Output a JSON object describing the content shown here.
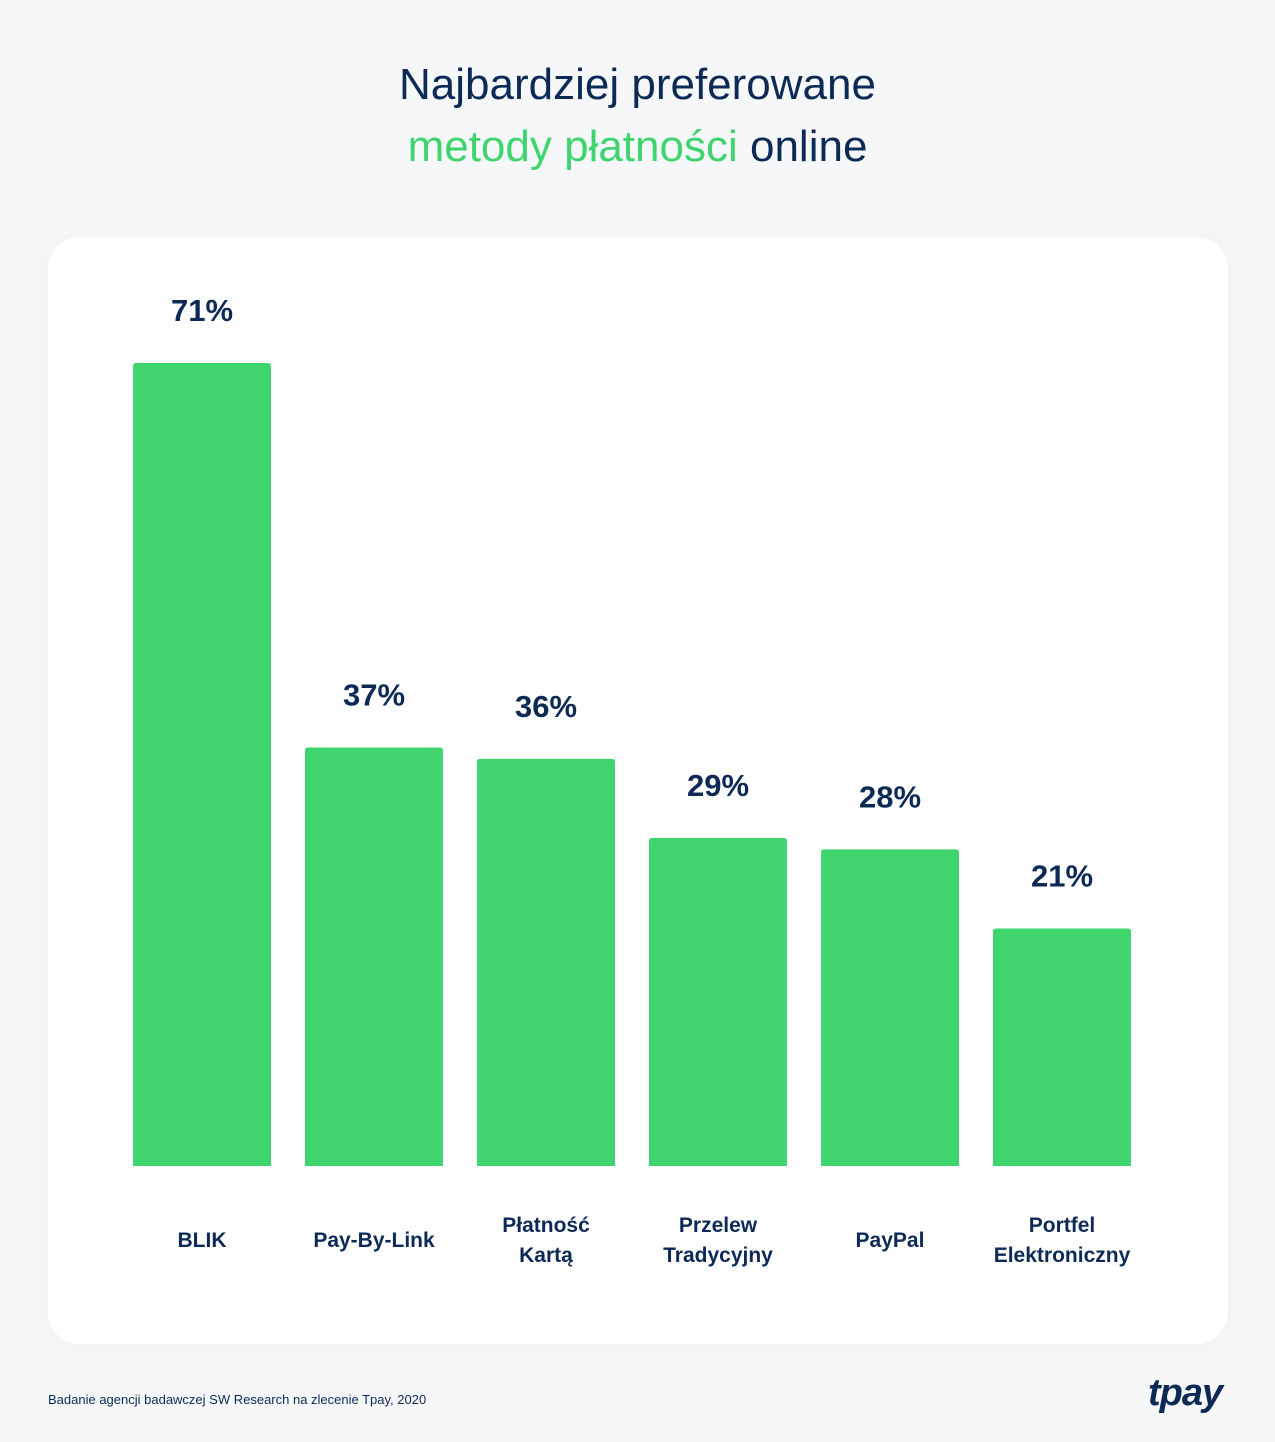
{
  "title": {
    "line1": "Najbardziej preferowane",
    "highlight": "metody płatności",
    "rest": " online"
  },
  "chart_data": {
    "type": "bar",
    "categories": [
      [
        "BLIK"
      ],
      [
        "Pay-By-Link"
      ],
      [
        "Płatność",
        "Kartą"
      ],
      [
        "Przelew",
        "Tradycyjny"
      ],
      [
        "PayPal"
      ],
      [
        "Portfel",
        "Elektroniczny"
      ]
    ],
    "values": [
      71,
      37,
      36,
      29,
      28,
      21
    ],
    "value_labels": [
      "71%",
      "37%",
      "36%",
      "29%",
      "28%",
      "21%"
    ],
    "unit": "%",
    "grid": false,
    "colors": {
      "bar": "#3fd46e",
      "text": "#0d2a57"
    }
  },
  "footer": {
    "source": "Badanie agencji badawczej SW Research na zlecenie Tpay, 2020"
  },
  "logo": {
    "text": "tpay"
  }
}
